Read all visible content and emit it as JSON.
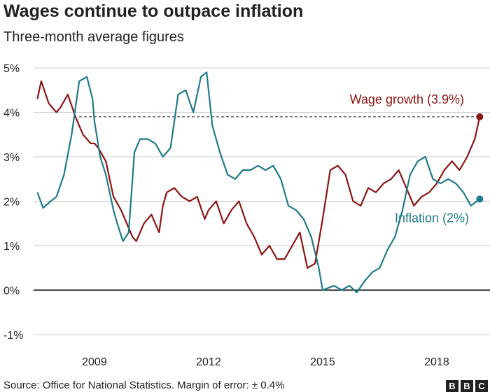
{
  "title": "Wages continue to outpace inflation",
  "subtitle": "Three-month average figures",
  "source": "Source: Office for National Statistics. Margin of error: ± 0.4%",
  "logo_letters": [
    "B",
    "B",
    "C"
  ],
  "colors": {
    "wage": "#8b1414",
    "inflation": "#1f7a8c",
    "grid": "#cccccc",
    "axis": "#222222"
  },
  "chart_data": {
    "type": "line",
    "title": "Wages continue to outpace inflation",
    "subtitle": "Three-month average figures",
    "xlabel": "",
    "ylabel": "",
    "xlim": [
      2007.4,
      2019.4
    ],
    "ylim": [
      -1,
      5
    ],
    "y_ticks": [
      5,
      4,
      3,
      2,
      1,
      0,
      -1
    ],
    "y_tick_labels": [
      "5%",
      "4%",
      "3%",
      "2%",
      "1%",
      "0%",
      "-1%"
    ],
    "x_ticks": [
      2009,
      2012,
      2015,
      2018
    ],
    "x_tick_labels": [
      "2009",
      "2012",
      "2015",
      "2018"
    ],
    "reference_line": {
      "value": 3.9,
      "style": "dashed"
    },
    "series": [
      {
        "name": "Wage growth",
        "label": "Wage growth (3.9%)",
        "color": "#8b1414",
        "endpoint": [
          2019.13,
          3.9
        ],
        "x": [
          2007.5,
          2007.6,
          2007.8,
          2008.0,
          2008.1,
          2008.3,
          2008.5,
          2008.7,
          2008.9,
          2009.0,
          2009.1,
          2009.3,
          2009.5,
          2009.7,
          2009.9,
          2010.0,
          2010.1,
          2010.3,
          2010.5,
          2010.7,
          2010.8,
          2010.9,
          2011.1,
          2011.3,
          2011.5,
          2011.7,
          2011.9,
          2012.0,
          2012.2,
          2012.4,
          2012.6,
          2012.8,
          2013.0,
          2013.2,
          2013.4,
          2013.6,
          2013.8,
          2014.0,
          2014.2,
          2014.4,
          2014.6,
          2014.8,
          2015.0,
          2015.2,
          2015.4,
          2015.6,
          2015.8,
          2016.0,
          2016.2,
          2016.4,
          2016.6,
          2016.8,
          2017.0,
          2017.2,
          2017.4,
          2017.6,
          2017.8,
          2018.0,
          2018.2,
          2018.4,
          2018.6,
          2018.8,
          2019.0,
          2019.13
        ],
        "values": [
          4.3,
          4.7,
          4.2,
          4.0,
          4.1,
          4.4,
          3.9,
          3.5,
          3.3,
          3.3,
          3.2,
          2.9,
          2.1,
          1.8,
          1.4,
          1.2,
          1.1,
          1.5,
          1.7,
          1.3,
          1.9,
          2.2,
          2.3,
          2.1,
          2.0,
          2.1,
          1.6,
          1.8,
          2.0,
          1.5,
          1.8,
          2.0,
          1.5,
          1.2,
          0.8,
          1.0,
          0.7,
          0.7,
          1.0,
          1.3,
          0.5,
          0.6,
          1.6,
          2.7,
          2.8,
          2.6,
          2.0,
          1.9,
          2.3,
          2.2,
          2.4,
          2.5,
          2.7,
          2.3,
          1.9,
          2.1,
          2.2,
          2.4,
          2.7,
          2.9,
          2.7,
          3.0,
          3.4,
          3.9
        ]
      },
      {
        "name": "Inflation",
        "label": "Inflation (2%)",
        "color": "#1f7a8c",
        "endpoint": [
          2019.13,
          2.05
        ],
        "x": [
          2007.5,
          2007.65,
          2007.85,
          2008.0,
          2008.2,
          2008.4,
          2008.6,
          2008.8,
          2008.95,
          2009.0,
          2009.15,
          2009.3,
          2009.5,
          2009.6,
          2009.75,
          2009.9,
          2010.05,
          2010.2,
          2010.4,
          2010.6,
          2010.8,
          2011.0,
          2011.2,
          2011.4,
          2011.6,
          2011.8,
          2011.95,
          2012.1,
          2012.3,
          2012.5,
          2012.7,
          2012.9,
          2013.1,
          2013.3,
          2013.5,
          2013.7,
          2013.9,
          2014.1,
          2014.3,
          2014.5,
          2014.7,
          2014.9,
          2015.0,
          2015.15,
          2015.3,
          2015.5,
          2015.7,
          2015.9,
          2016.1,
          2016.3,
          2016.5,
          2016.7,
          2016.9,
          2017.1,
          2017.3,
          2017.5,
          2017.7,
          2017.9,
          2018.1,
          2018.3,
          2018.5,
          2018.7,
          2018.9,
          2019.13
        ],
        "values": [
          2.2,
          1.85,
          2.0,
          2.1,
          2.6,
          3.5,
          4.7,
          4.8,
          4.3,
          3.8,
          3.0,
          2.6,
          1.8,
          1.5,
          1.1,
          1.3,
          3.1,
          3.4,
          3.4,
          3.3,
          3.0,
          3.2,
          4.4,
          4.5,
          4.0,
          4.8,
          4.9,
          3.7,
          3.1,
          2.6,
          2.5,
          2.7,
          2.7,
          2.8,
          2.7,
          2.8,
          2.5,
          1.9,
          1.8,
          1.6,
          1.2,
          0.5,
          0.0,
          0.05,
          0.1,
          0.0,
          0.1,
          -0.05,
          0.2,
          0.4,
          0.5,
          0.9,
          1.2,
          1.8,
          2.6,
          2.9,
          3.0,
          2.5,
          2.4,
          2.5,
          2.4,
          2.2,
          1.9,
          2.05
        ]
      }
    ]
  }
}
